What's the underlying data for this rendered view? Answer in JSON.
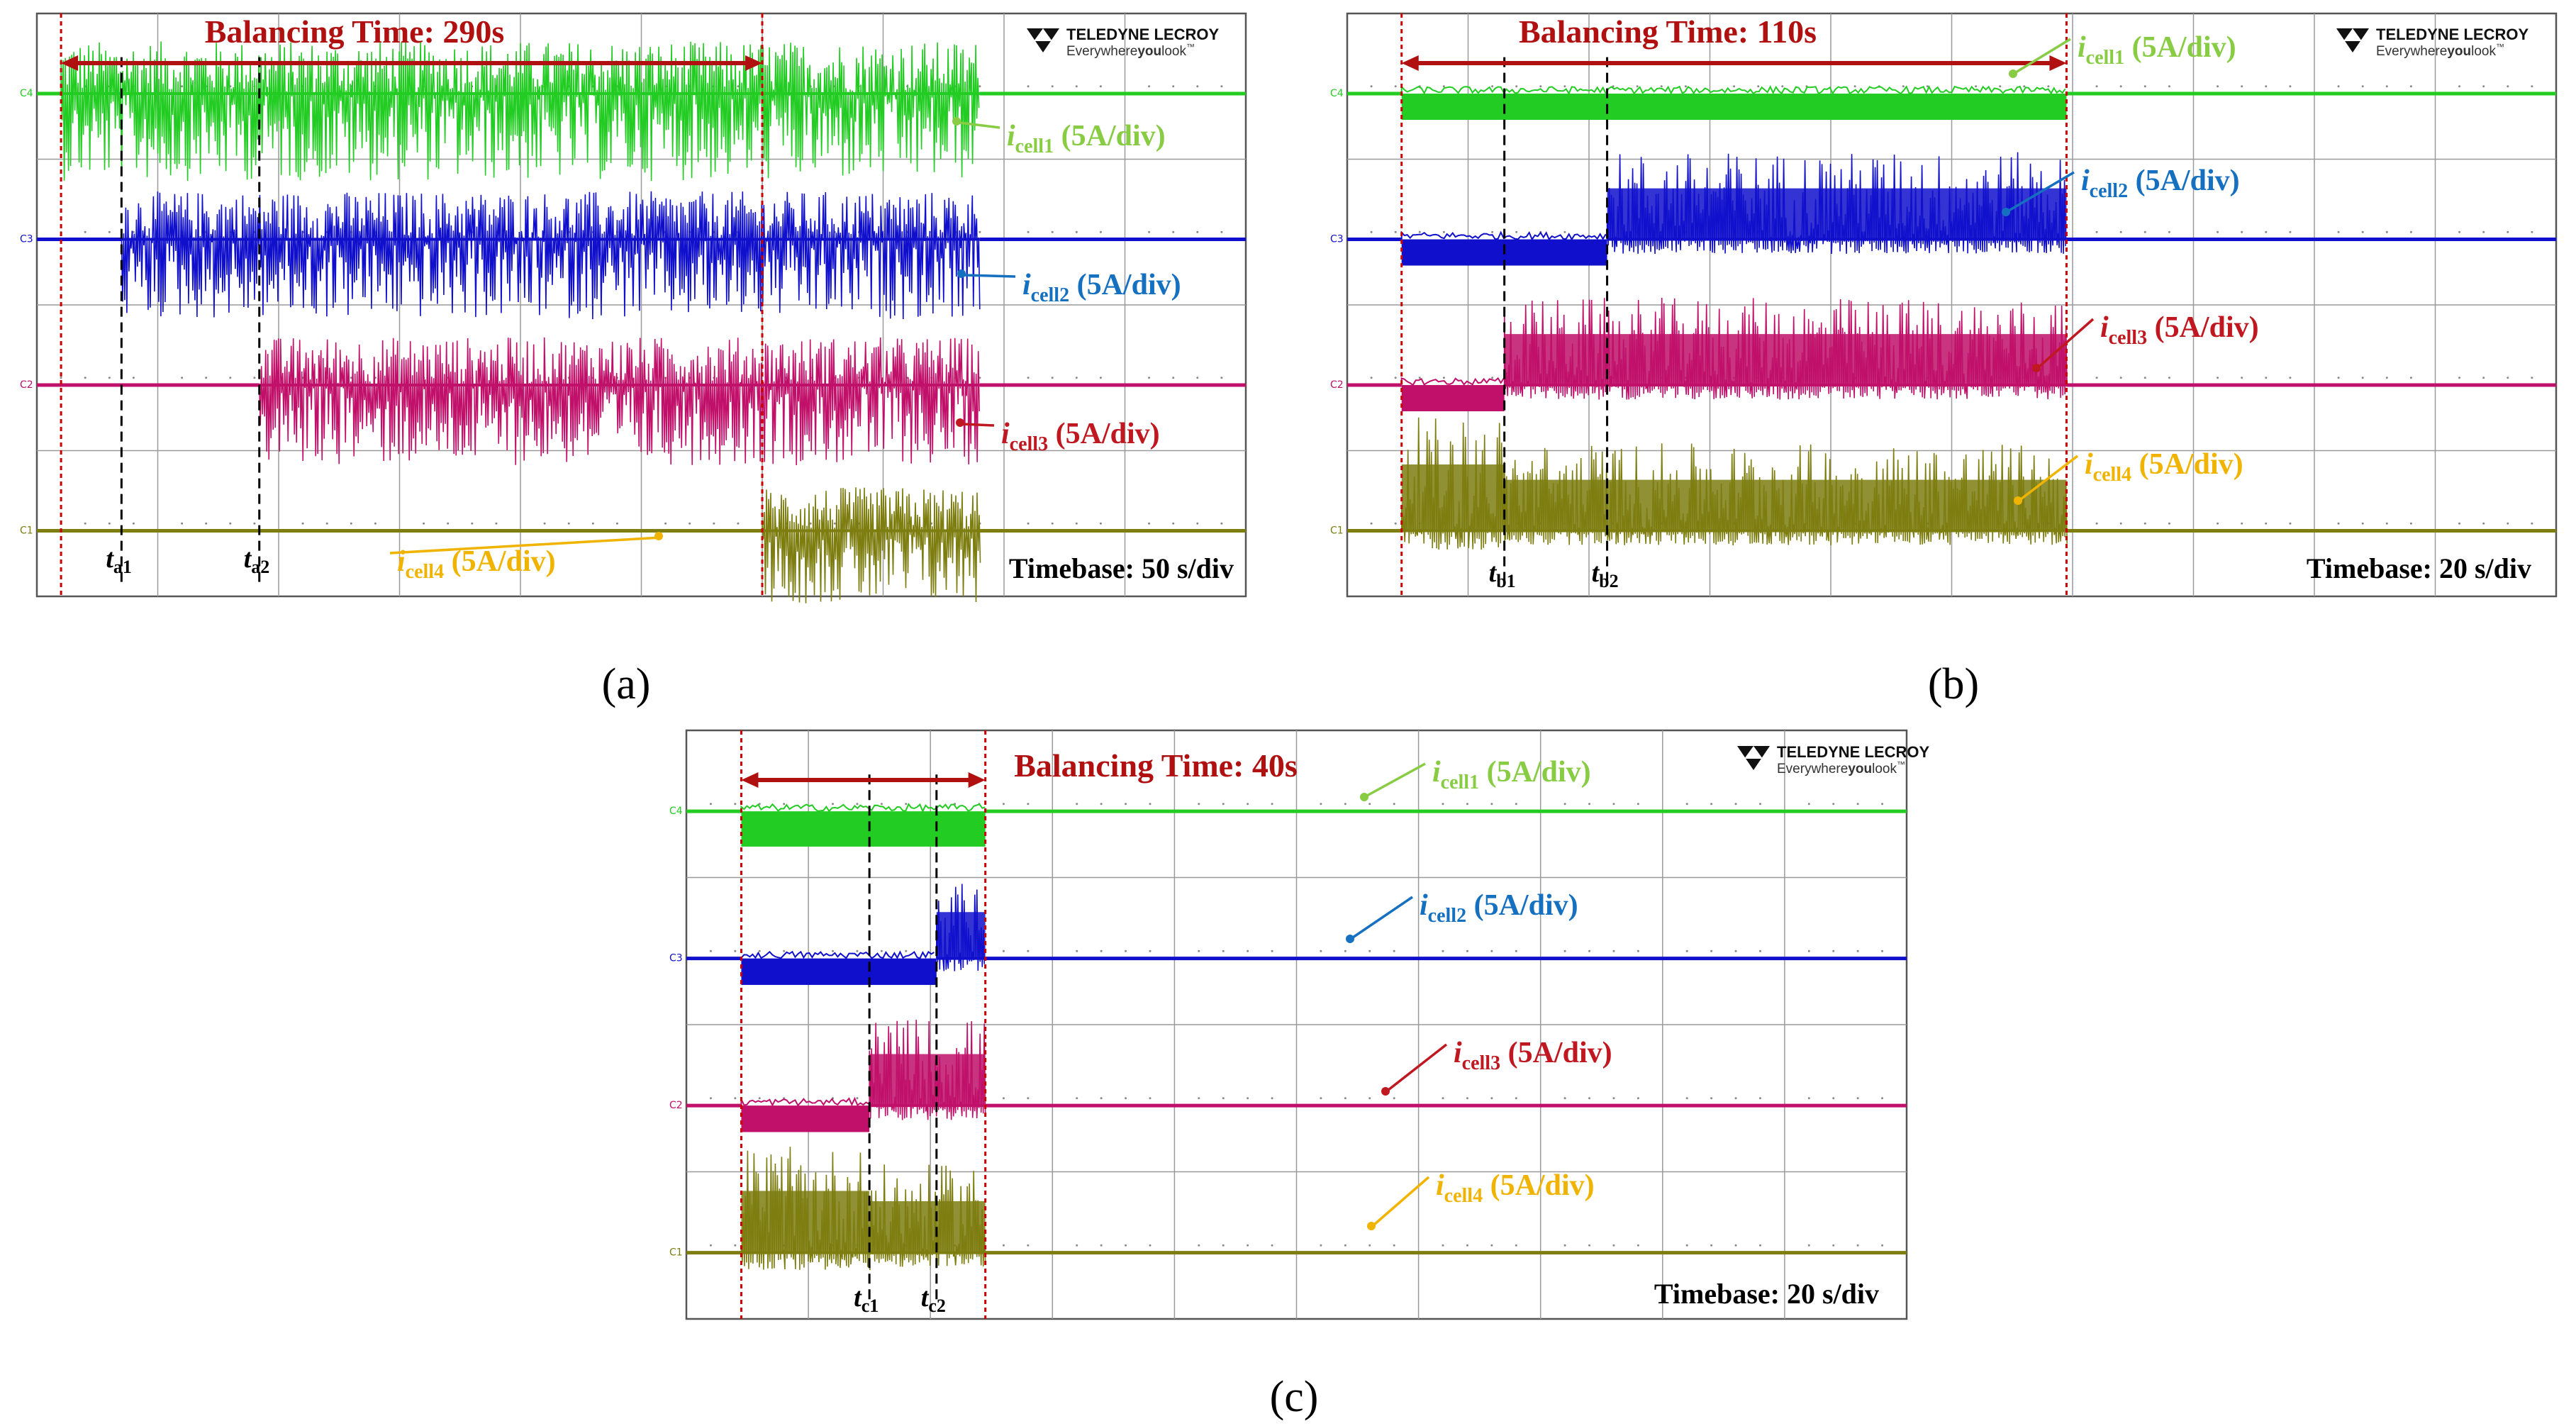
{
  "brand": {
    "name": "TELEDYNE LECROY",
    "tagline_prefix": "Everywhere",
    "tagline_em": "you",
    "tagline_suffix": "look",
    "tm": "™"
  },
  "colors": {
    "cell1": "#22cc22",
    "cell1_label": "#88cc44",
    "cell2": "#1010cc",
    "cell2_label": "#1570c0",
    "cell3": "#c0106a",
    "cell3_label": "#c01820",
    "cell4": "#7d7d10",
    "cell4_label": "#f0b400",
    "cursor": "#cc0000",
    "title": "#b01010",
    "grid": "#9a9a9a"
  },
  "channel_tags": [
    "C4",
    "C3",
    "C2",
    "C1"
  ],
  "chart_data": [
    {
      "panel": "(a)",
      "type": "line",
      "title": "Balancing Time: 290s",
      "balancing_time_s": 290,
      "timebase": "Timebase: 50 s/div",
      "timebase_s_per_div": 50,
      "time_range_s": [
        0,
        500
      ],
      "divisions_x": 10,
      "divisions_y": 4,
      "balancing_window_s": [
        10,
        300
      ],
      "end_of_activity_s": 390,
      "markers": [
        {
          "name": "t",
          "sub": "a1",
          "t_s": 35
        },
        {
          "name": "t",
          "sub": "a2",
          "t_s": 92
        }
      ],
      "series": [
        {
          "name": "cell1",
          "label_main": "i",
          "label_sub": "cell1",
          "label_scale": "(5A/div)",
          "scale": "5A/div",
          "segments": [
            [
              0,
              10,
              0
            ],
            [
              10,
              390,
              1.2
            ],
            [
              390,
              500,
              0
            ]
          ]
        },
        {
          "name": "cell2",
          "label_main": "i",
          "label_sub": "cell2",
          "label_scale": "(5A/div)",
          "scale": "5A/div",
          "segments": [
            [
              0,
              35,
              0
            ],
            [
              35,
              390,
              1.1
            ],
            [
              390,
              500,
              0
            ]
          ]
        },
        {
          "name": "cell3",
          "label_main": "i",
          "label_sub": "cell3",
          "label_scale": "(5A/div)",
          "scale": "5A/div",
          "segments": [
            [
              0,
              92,
              0
            ],
            [
              92,
              390,
              1.1
            ],
            [
              390,
              500,
              0
            ]
          ]
        },
        {
          "name": "cell4",
          "label_main": "i",
          "label_sub": "cell4",
          "label_scale": "(5A/div)",
          "scale": "5A/div",
          "segments": [
            [
              0,
              300,
              0
            ],
            [
              300,
              390,
              1.0
            ],
            [
              390,
              500,
              0
            ]
          ]
        }
      ],
      "caption": "(a)"
    },
    {
      "panel": "(b)",
      "type": "line",
      "title": "Balancing Time: 110s",
      "balancing_time_s": 110,
      "timebase": "Timebase: 20 s/div",
      "timebase_s_per_div": 20,
      "time_range_s": [
        0,
        200
      ],
      "divisions_x": 10,
      "divisions_y": 4,
      "balancing_window_s": [
        9,
        119
      ],
      "end_of_activity_s": 119,
      "markers": [
        {
          "name": "t",
          "sub": "b1",
          "t_s": 26
        },
        {
          "name": "t",
          "sub": "b2",
          "t_s": 43
        }
      ],
      "series": [
        {
          "name": "cell1",
          "label_main": "i",
          "label_sub": "cell1",
          "label_scale": "(5A/div)",
          "scale": "5A/div",
          "segments": [
            [
              0,
              9,
              0
            ],
            [
              9,
              119,
              -0.3
            ],
            [
              119,
              200,
              0
            ]
          ]
        },
        {
          "name": "cell2",
          "label_main": "i",
          "label_sub": "cell2",
          "label_scale": "(5A/div)",
          "scale": "5A/div",
          "segments": [
            [
              0,
              9,
              0
            ],
            [
              9,
              43,
              -0.3
            ],
            [
              43,
              119,
              2.0
            ],
            [
              119,
              200,
              0
            ]
          ]
        },
        {
          "name": "cell3",
          "label_main": "i",
          "label_sub": "cell3",
          "label_scale": "(5A/div)",
          "scale": "5A/div",
          "segments": [
            [
              0,
              9,
              0
            ],
            [
              9,
              26,
              -0.3
            ],
            [
              26,
              119,
              2.0
            ],
            [
              119,
              200,
              0
            ]
          ]
        },
        {
          "name": "cell4",
          "label_main": "i",
          "label_sub": "cell4",
          "label_scale": "(5A/div)",
          "scale": "5A/div",
          "segments": [
            [
              0,
              9,
              0
            ],
            [
              9,
              26,
              2.6
            ],
            [
              26,
              119,
              2.0
            ],
            [
              119,
              200,
              0
            ]
          ]
        }
      ],
      "caption": "(b)"
    },
    {
      "panel": "(c)",
      "type": "line",
      "title": "Balancing Time: 40s",
      "balancing_time_s": 40,
      "timebase": "Timebase: 20 s/div",
      "timebase_s_per_div": 20,
      "time_range_s": [
        0,
        200
      ],
      "divisions_x": 10,
      "divisions_y": 4,
      "balancing_window_s": [
        9,
        49
      ],
      "end_of_activity_s": 49,
      "markers": [
        {
          "name": "t",
          "sub": "c1",
          "t_s": 30
        },
        {
          "name": "t",
          "sub": "c2",
          "t_s": 41
        }
      ],
      "series": [
        {
          "name": "cell1",
          "label_main": "i",
          "label_sub": "cell1",
          "label_scale": "(5A/div)",
          "scale": "5A/div",
          "segments": [
            [
              0,
              9,
              0
            ],
            [
              9,
              49,
              -0.4
            ],
            [
              49,
              200,
              0
            ]
          ]
        },
        {
          "name": "cell2",
          "label_main": "i",
          "label_sub": "cell2",
          "label_scale": "(5A/div)",
          "scale": "5A/div",
          "segments": [
            [
              0,
              9,
              0
            ],
            [
              9,
              41,
              -0.3
            ],
            [
              41,
              49,
              1.8
            ],
            [
              49,
              200,
              0
            ]
          ]
        },
        {
          "name": "cell3",
          "label_main": "i",
          "label_sub": "cell3",
          "label_scale": "(5A/div)",
          "scale": "5A/div",
          "segments": [
            [
              0,
              9,
              0
            ],
            [
              9,
              30,
              -0.3
            ],
            [
              30,
              49,
              2.0
            ],
            [
              49,
              200,
              0
            ]
          ]
        },
        {
          "name": "cell4",
          "label_main": "i",
          "label_sub": "cell4",
          "label_scale": "(5A/div)",
          "scale": "5A/div",
          "segments": [
            [
              0,
              9,
              0
            ],
            [
              9,
              30,
              2.4
            ],
            [
              30,
              49,
              2.0
            ],
            [
              49,
              200,
              0
            ]
          ]
        }
      ],
      "caption": "(c)"
    }
  ]
}
